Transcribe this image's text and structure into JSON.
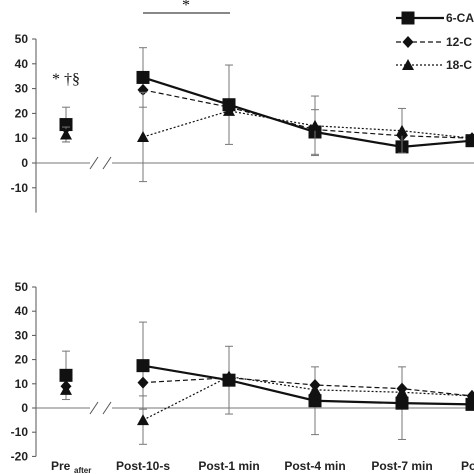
{
  "chart_data": [
    {
      "type": "line",
      "panel": "top",
      "categories": [
        "Pre",
        "Post-10-s",
        "Post-1 min",
        "Post-4 min",
        "Post-7 min",
        "Po"
      ],
      "ylim": [
        -20,
        50
      ],
      "yticks": [
        50,
        40,
        30,
        20,
        10,
        0,
        -10
      ],
      "baseline": 0,
      "grid": false,
      "legend": "top-right",
      "series": [
        {
          "name": "6-CA",
          "marker": "square",
          "line": "solid",
          "values": [
            15.5,
            34.5,
            23.5,
            12.5,
            6.5,
            9
          ],
          "err": [
            7,
            12,
            16,
            9,
            0,
            0
          ]
        },
        {
          "name": "12-C",
          "marker": "diamond",
          "line": "dashed",
          "values": [
            14,
            29.5,
            22.5,
            13.5,
            11,
            10
          ],
          "err": [
            0,
            0,
            0,
            0,
            0,
            0
          ]
        },
        {
          "name": "18-C",
          "marker": "triangle",
          "line": "dotted",
          "values": [
            11.5,
            10.5,
            21,
            15,
            13,
            10
          ],
          "err": [
            3,
            18,
            0,
            12,
            9,
            0
          ]
        }
      ],
      "annotations": [
        "*",
        "* †§"
      ]
    },
    {
      "type": "line",
      "panel": "bottom",
      "categories": [
        "Pre",
        "Post-10-s",
        "Post-1 min",
        "Post-4 min",
        "Post-7 min",
        "Po"
      ],
      "xlabels": [
        "Pre",
        "after",
        "Post-10-s",
        "Post-1 min",
        "Post-4 min",
        "Post-7 min",
        "Po"
      ],
      "ylim": [
        -20,
        50
      ],
      "yticks": [
        50,
        40,
        30,
        20,
        10,
        0,
        -10,
        -20
      ],
      "baseline": 0,
      "grid": false,
      "series": [
        {
          "name": "6-CA",
          "marker": "square",
          "line": "solid",
          "values": [
            13.5,
            17.5,
            11.5,
            3,
            2,
            1.5
          ],
          "err": [
            10,
            18,
            14,
            14,
            15,
            0
          ]
        },
        {
          "name": "12-C",
          "marker": "diamond",
          "line": "dashed",
          "values": [
            9,
            10.5,
            12.5,
            9.5,
            8,
            5
          ],
          "err": [
            0,
            0,
            0,
            0,
            0,
            0
          ]
        },
        {
          "name": "18-C",
          "marker": "triangle",
          "line": "dotted",
          "values": [
            7.5,
            -5,
            13,
            7.5,
            6.5,
            5
          ],
          "err": [
            0,
            10,
            0,
            0,
            0,
            0
          ]
        }
      ]
    }
  ]
}
